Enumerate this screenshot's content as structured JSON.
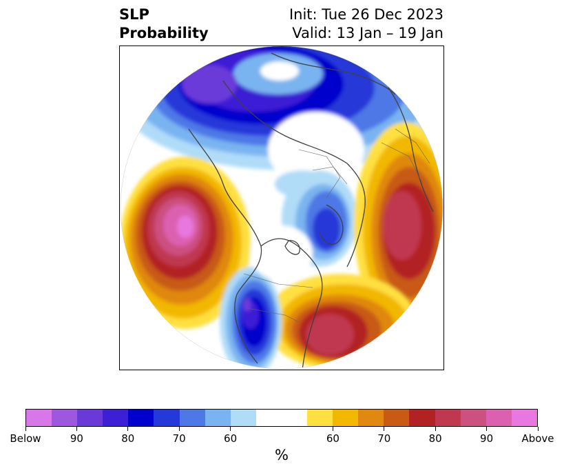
{
  "title": {
    "left_line1": "SLP",
    "left_line2": "Probability",
    "right_line1": "Init: Tue 26 Dec 2023",
    "right_line2": "Valid: 13 Jan – 19 Jan"
  },
  "map": {
    "projection": "north-polar-stereographic",
    "field": "sea-level-pressure-probability",
    "coastline_color": "#404040",
    "border_color": "#606060"
  },
  "colorbar": {
    "colors": [
      "#d877e8",
      "#9e58e0",
      "#6a3ad8",
      "#3d1fd6",
      "#0000cc",
      "#2538d8",
      "#4d78e6",
      "#7ab4f0",
      "#b0dcf8",
      "#ffffff",
      "#ffe040",
      "#f2b800",
      "#e08810",
      "#c85a14",
      "#b22222",
      "#c03850",
      "#cc5080",
      "#dc60b0",
      "#e878e0"
    ],
    "labels": [
      "Below",
      "90",
      "80",
      "70",
      "60",
      "60",
      "70",
      "80",
      "90",
      "Above"
    ],
    "unit": "%"
  }
}
